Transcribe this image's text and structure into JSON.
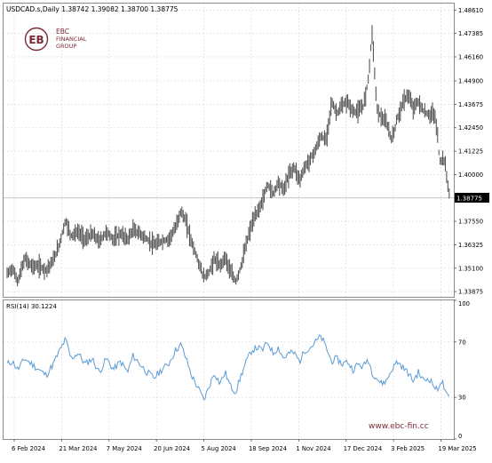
{
  "header": {
    "symbol_line": "USDCAD.s,Daily  1.38742 1.39082 1.38700 1.38775"
  },
  "logo": {
    "line1": "EBC",
    "line2": "FINANCIAL",
    "line3": "GROUP",
    "color": "#7a2a35"
  },
  "watermark": {
    "url": "www.ebc-fin.cc",
    "color": "#7a2a35"
  },
  "colors": {
    "price": "#555555",
    "rsi": "#5b9bd5",
    "grid": "#d8d8d8",
    "current_line": "#b0b0b0",
    "current_box_bg": "#000000"
  },
  "price_panel": {
    "ylim": [
      1.336,
      1.4895
    ],
    "y_ticks": [
      "1.48610",
      "1.47385",
      "1.46160",
      "1.44900",
      "1.43675",
      "1.42450",
      "1.41225",
      "1.40000",
      "1.38775",
      "1.37550",
      "1.36325",
      "1.35100",
      "1.33875"
    ],
    "current_price_label": "1.38775",
    "current_price": 1.38775
  },
  "rsi_panel": {
    "label": "RSI(14) 30.1224",
    "ylim": [
      0,
      100
    ],
    "y_ticks": [
      "100",
      "70",
      "30",
      "0"
    ]
  },
  "x_axis": {
    "ticks": [
      "6 Feb 2024",
      "21 Mar 2024",
      "7 May 2024",
      "20 Jun 2024",
      "5 Aug 2024",
      "18 Sep 2024",
      "1 Nov 2024",
      "17 Dec 2024",
      "3 Feb 2025",
      "19 Mar 2025"
    ]
  },
  "chart_data": {
    "type": "line",
    "title": "USDCAD.s,Daily",
    "price_anchors": [
      [
        0,
        1.348
      ],
      [
        6,
        1.351
      ],
      [
        12,
        1.344
      ],
      [
        20,
        1.356
      ],
      [
        28,
        1.352
      ],
      [
        36,
        1.352
      ],
      [
        44,
        1.35
      ],
      [
        52,
        1.355
      ],
      [
        58,
        1.362
      ],
      [
        66,
        1.376
      ],
      [
        72,
        1.368
      ],
      [
        80,
        1.37
      ],
      [
        88,
        1.366
      ],
      [
        96,
        1.369
      ],
      [
        104,
        1.365
      ],
      [
        112,
        1.37
      ],
      [
        120,
        1.366
      ],
      [
        128,
        1.369
      ],
      [
        136,
        1.366
      ],
      [
        142,
        1.371
      ],
      [
        150,
        1.369
      ],
      [
        158,
        1.366
      ],
      [
        166,
        1.363
      ],
      [
        174,
        1.365
      ],
      [
        182,
        1.366
      ],
      [
        190,
        1.372
      ],
      [
        196,
        1.381
      ],
      [
        202,
        1.375
      ],
      [
        208,
        1.365
      ],
      [
        216,
        1.354
      ],
      [
        222,
        1.346
      ],
      [
        228,
        1.349
      ],
      [
        234,
        1.356
      ],
      [
        240,
        1.352
      ],
      [
        246,
        1.357
      ],
      [
        252,
        1.349
      ],
      [
        258,
        1.344
      ],
      [
        264,
        1.352
      ],
      [
        270,
        1.364
      ],
      [
        276,
        1.374
      ],
      [
        282,
        1.38
      ],
      [
        288,
        1.386
      ],
      [
        294,
        1.395
      ],
      [
        300,
        1.39
      ],
      [
        306,
        1.396
      ],
      [
        312,
        1.392
      ],
      [
        318,
        1.4
      ],
      [
        324,
        1.404
      ],
      [
        330,
        1.397
      ],
      [
        336,
        1.404
      ],
      [
        342,
        1.408
      ],
      [
        348,
        1.413
      ],
      [
        354,
        1.42
      ],
      [
        360,
        1.418
      ],
      [
        366,
        1.438
      ],
      [
        372,
        1.432
      ],
      [
        378,
        1.436
      ],
      [
        384,
        1.438
      ],
      [
        390,
        1.433
      ],
      [
        396,
        1.433
      ],
      [
        402,
        1.436
      ],
      [
        407,
        1.448
      ],
      [
        412,
        1.475
      ],
      [
        417,
        1.435
      ],
      [
        422,
        1.43
      ],
      [
        428,
        1.427
      ],
      [
        434,
        1.418
      ],
      [
        440,
        1.429
      ],
      [
        446,
        1.437
      ],
      [
        452,
        1.442
      ],
      [
        458,
        1.435
      ],
      [
        464,
        1.438
      ],
      [
        470,
        1.433
      ],
      [
        476,
        1.431
      ],
      [
        482,
        1.432
      ],
      [
        486,
        1.42
      ],
      [
        488,
        1.406
      ],
      [
        492,
        1.409
      ],
      [
        494,
        1.406
      ],
      [
        497,
        1.395
      ],
      [
        500,
        1.3877
      ]
    ],
    "rsi_anchors": [
      [
        0,
        54
      ],
      [
        6,
        56
      ],
      [
        12,
        50
      ],
      [
        20,
        58
      ],
      [
        28,
        54
      ],
      [
        36,
        50
      ],
      [
        44,
        46
      ],
      [
        52,
        54
      ],
      [
        58,
        62
      ],
      [
        66,
        72
      ],
      [
        72,
        58
      ],
      [
        80,
        62
      ],
      [
        88,
        54
      ],
      [
        96,
        58
      ],
      [
        104,
        48
      ],
      [
        112,
        58
      ],
      [
        120,
        50
      ],
      [
        128,
        56
      ],
      [
        136,
        48
      ],
      [
        142,
        60
      ],
      [
        150,
        54
      ],
      [
        158,
        48
      ],
      [
        166,
        44
      ],
      [
        174,
        50
      ],
      [
        182,
        54
      ],
      [
        190,
        64
      ],
      [
        196,
        68
      ],
      [
        202,
        58
      ],
      [
        208,
        46
      ],
      [
        216,
        36
      ],
      [
        222,
        28
      ],
      [
        228,
        38
      ],
      [
        234,
        48
      ],
      [
        240,
        40
      ],
      [
        246,
        48
      ],
      [
        252,
        38
      ],
      [
        258,
        34
      ],
      [
        264,
        46
      ],
      [
        270,
        56
      ],
      [
        276,
        64
      ],
      [
        282,
        66
      ],
      [
        288,
        64
      ],
      [
        294,
        70
      ],
      [
        300,
        62
      ],
      [
        306,
        66
      ],
      [
        312,
        58
      ],
      [
        318,
        62
      ],
      [
        324,
        62
      ],
      [
        330,
        56
      ],
      [
        336,
        64
      ],
      [
        342,
        66
      ],
      [
        348,
        70
      ],
      [
        354,
        74
      ],
      [
        360,
        66
      ],
      [
        366,
        56
      ],
      [
        372,
        58
      ],
      [
        378,
        54
      ],
      [
        384,
        56
      ],
      [
        390,
        50
      ],
      [
        396,
        54
      ],
      [
        402,
        52
      ],
      [
        407,
        58
      ],
      [
        412,
        48
      ],
      [
        417,
        44
      ],
      [
        422,
        40
      ],
      [
        428,
        42
      ],
      [
        434,
        50
      ],
      [
        440,
        56
      ],
      [
        446,
        52
      ],
      [
        452,
        48
      ],
      [
        458,
        42
      ],
      [
        464,
        48
      ],
      [
        470,
        42
      ],
      [
        476,
        44
      ],
      [
        482,
        38
      ],
      [
        486,
        34
      ],
      [
        488,
        42
      ],
      [
        492,
        40
      ],
      [
        494,
        34
      ],
      [
        497,
        30
      ],
      [
        500,
        30
      ]
    ]
  }
}
